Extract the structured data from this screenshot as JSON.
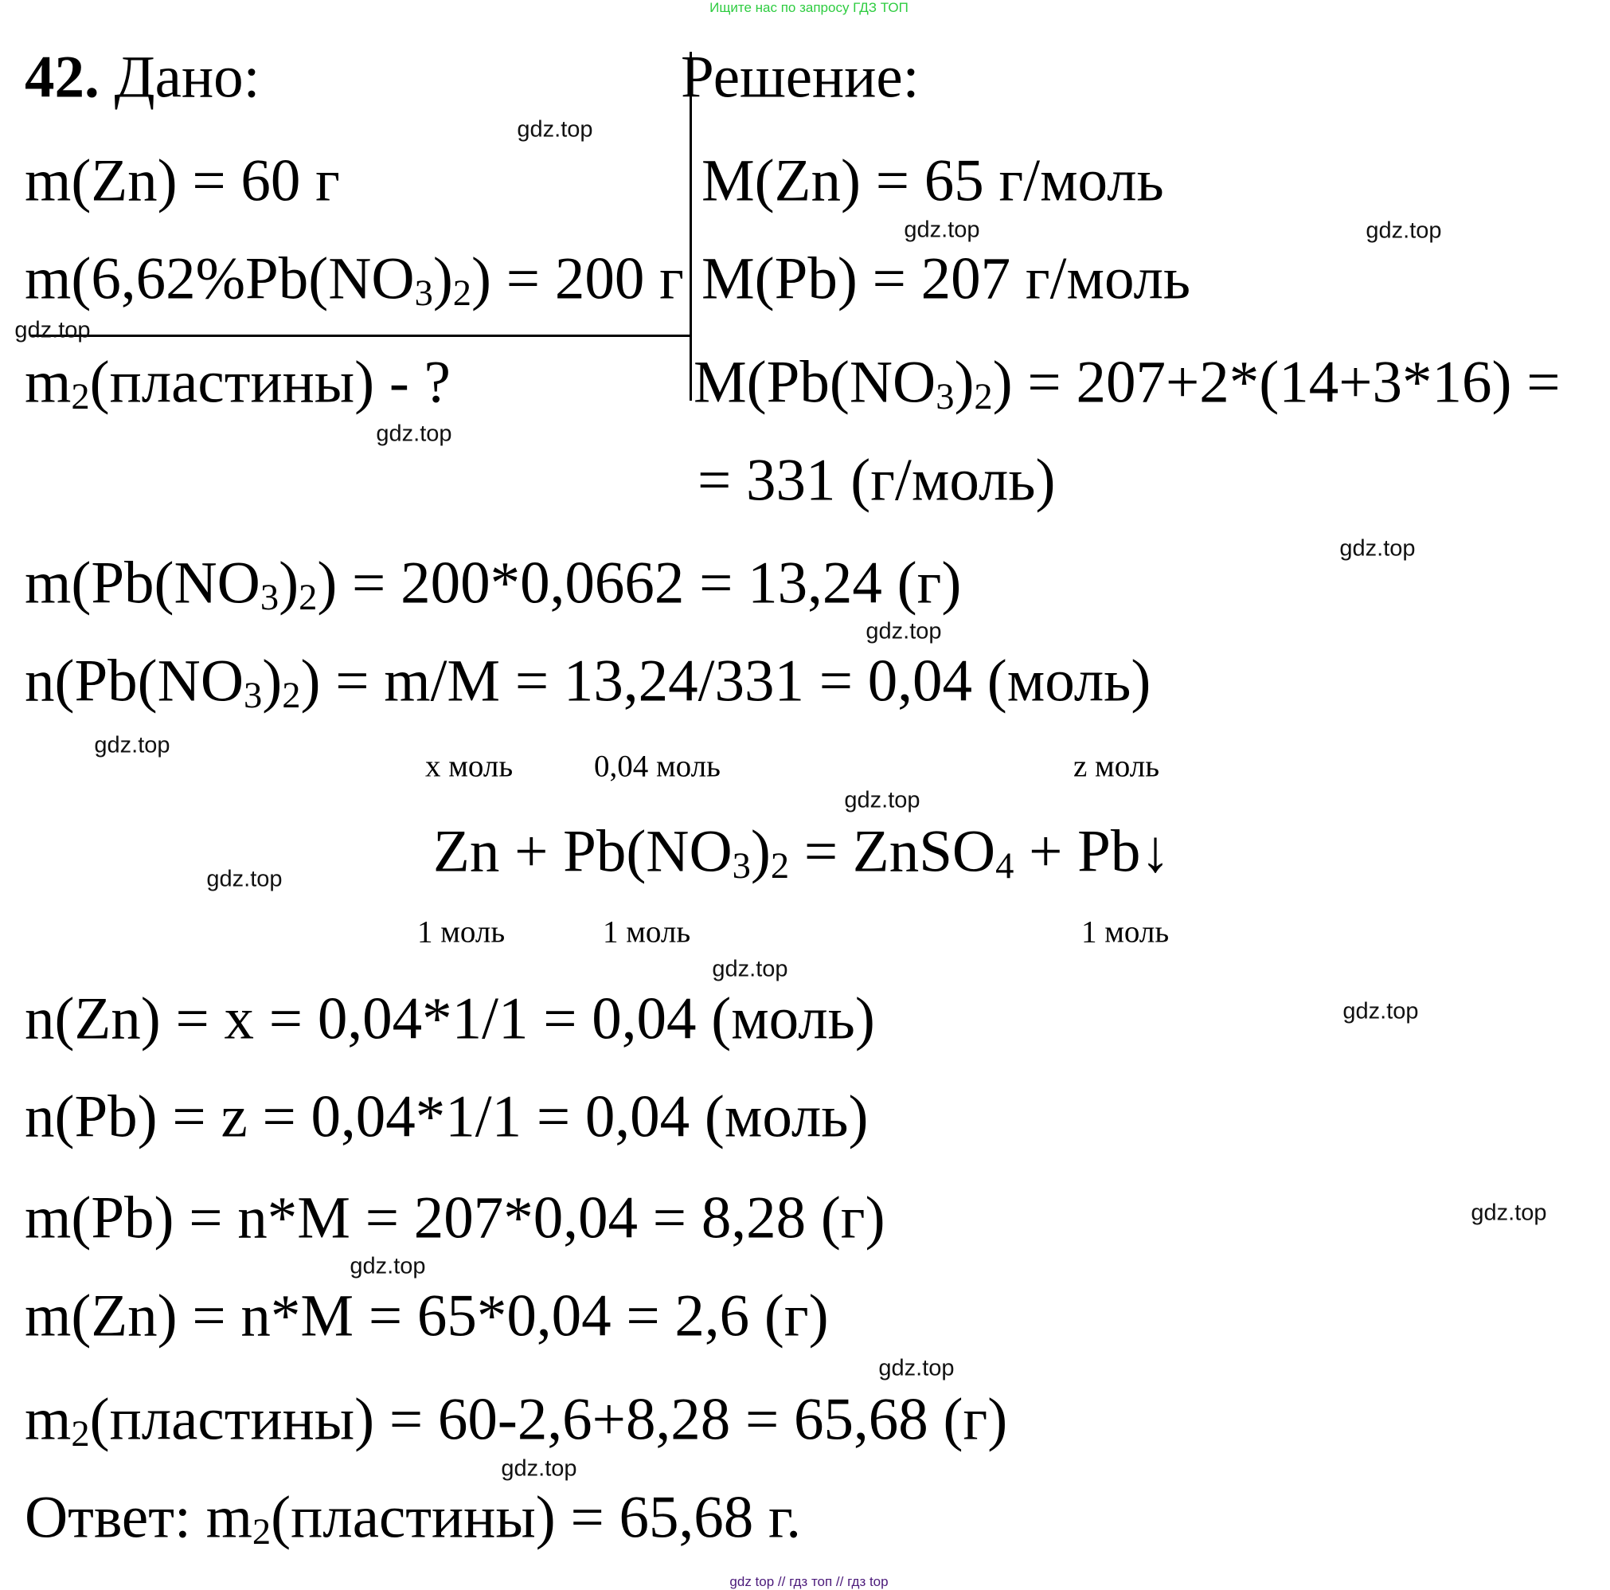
{
  "header_note": "Ищите нас по запросу ГДЗ ТОП",
  "footer_note": "gdz top  //  гдз топ  //  гдз top",
  "problem_number": "42.",
  "given_title": "Дано:",
  "solution_title": "Решение:",
  "lines": [
    [
      {
        "t": "m(Zn) = 60 г"
      }
    ],
    [
      {
        "t": "m(6,62%Pb(NO"
      },
      {
        "t": "3",
        "sub": true
      },
      {
        "t": ")"
      },
      {
        "t": "2",
        "sub": true
      },
      {
        "t": ") = 200 г"
      }
    ],
    [
      {
        "t": "m"
      },
      {
        "t": "2",
        "sub": true
      },
      {
        "t": "(пластины) - ?"
      }
    ],
    [
      {
        "t": "M(Zn) = 65 г/моль"
      }
    ],
    [
      {
        "t": "M(Pb) = 207 г/моль"
      }
    ],
    [
      {
        "t": "M(Pb(NO"
      },
      {
        "t": "3",
        "sub": true
      },
      {
        "t": ")"
      },
      {
        "t": "2",
        "sub": true
      },
      {
        "t": ") = 207+2*(14+3*16) ="
      }
    ],
    [
      {
        "t": "= 331 (г/моль)"
      }
    ],
    [
      {
        "t": "m(Pb(NO"
      },
      {
        "t": "3",
        "sub": true
      },
      {
        "t": ")"
      },
      {
        "t": "2",
        "sub": true
      },
      {
        "t": ") = 200*0,0662 = 13,24 (г)"
      }
    ],
    [
      {
        "t": "n(Pb(NO"
      },
      {
        "t": "3",
        "sub": true
      },
      {
        "t": ")"
      },
      {
        "t": "2",
        "sub": true
      },
      {
        "t": ") = m/M = 13,24/331 = 0,04 (моль)"
      }
    ],
    [
      {
        "t": "Zn + Pb(NO"
      },
      {
        "t": "3",
        "sub": true
      },
      {
        "t": ")"
      },
      {
        "t": "2",
        "sub": true
      },
      {
        "t": " = ZnSO"
      },
      {
        "t": "4",
        "sub": true
      },
      {
        "t": " + Pb↓"
      }
    ],
    [
      {
        "t": "n(Zn) = x = 0,04*1/1 = 0,04 (моль)"
      }
    ],
    [
      {
        "t": "n(Pb) = z = 0,04*1/1 = 0,04 (моль)"
      }
    ],
    [
      {
        "t": "m(Pb) = n*M = 207*0,04 = 8,28 (г)"
      }
    ],
    [
      {
        "t": "m(Zn) = n*M = 65*0,04 = 2,6 (г)"
      }
    ],
    [
      {
        "t": "m"
      },
      {
        "t": "2",
        "sub": true
      },
      {
        "t": "(пластины) = 60-2,6+8,28 = 65,68 (г)"
      }
    ],
    [
      {
        "t": "Ответ: m"
      },
      {
        "t": "2",
        "sub": true
      },
      {
        "t": "(пластины) = 65,68 г."
      }
    ]
  ],
  "labels_above": [
    "x моль",
    "0,04 моль",
    "z моль"
  ],
  "labels_below": [
    "1 моль",
    "1 моль",
    "1 моль"
  ],
  "watermark": "gdz.top"
}
